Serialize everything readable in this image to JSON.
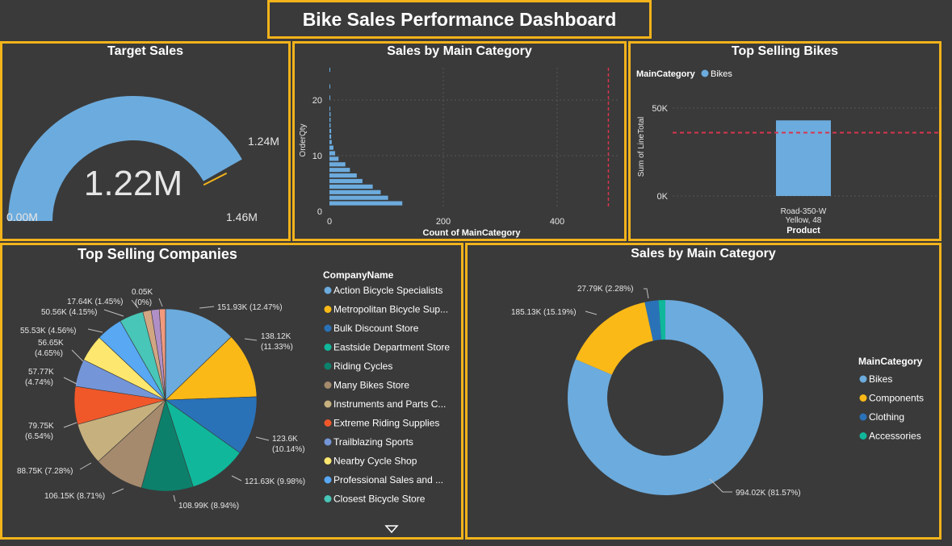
{
  "title": "Bike Sales Performance Dashboard",
  "colors": {
    "accent": "#f2b31b",
    "background": "#3a3a3a",
    "primary_blue": "#6cabdd"
  },
  "gauge": {
    "title": "Target Sales",
    "value_label": "1.22M",
    "min_label": "0.00M",
    "max_label": "1.46M",
    "target_label": "1.24M",
    "value": 1.22,
    "min": 0,
    "max": 1.46,
    "target": 1.24
  },
  "histogram": {
    "title": "Sales by Main Category",
    "ylabel": "OrderQty",
    "xlabel": "Count of MainCategory",
    "xticks": [
      "0",
      "200",
      "400"
    ],
    "yticks": [
      "0",
      "10",
      "20"
    ]
  },
  "top_bikes": {
    "title": "Top Selling Bikes",
    "legend_title": "MainCategory",
    "legend_item": "Bikes",
    "ylabel": "Sum of LineTotal",
    "xlabel": "Product",
    "yticks": [
      "0K",
      "50K"
    ],
    "product_line1": "Road-350-W",
    "product_line2": "Yellow, 48"
  },
  "companies": {
    "title": "Top Selling Companies",
    "legend_title": "CompanyName",
    "legend": [
      "Action Bicycle Specialists",
      "Metropolitan Bicycle Sup...",
      "Bulk Discount Store",
      "Eastside Department Store",
      "Riding Cycles",
      "Many Bikes Store",
      "Instruments and Parts C...",
      "Extreme Riding Supplies",
      "Trailblazing Sports",
      "Nearby Cycle Shop",
      "Professional Sales and ...",
      "Closest Bicycle Store"
    ],
    "labels": {
      "l0": "151.93K (12.47%)",
      "l1a": "138.12K",
      "l1b": "(11.33%)",
      "l2a": "123.6K",
      "l2b": "(10.14%)",
      "l3": "121.63K (9.98%)",
      "l4": "108.99K (8.94%)",
      "l5": "106.15K (8.71%)",
      "l6": "88.75K (7.28%)",
      "l7a": "79.75K",
      "l7b": "(6.54%)",
      "l8a": "57.77K",
      "l8b": "(4.74%)",
      "l9a": "56.65K",
      "l9b": "(4.65%)",
      "l10": "55.53K (4.56%)",
      "l11": "50.56K (4.15%)",
      "l12": "17.64K (1.45%)",
      "l13a": "0.05K",
      "l13b": "(0%)"
    }
  },
  "main_category": {
    "title": "Sales by Main Category",
    "legend_title": "MainCategory",
    "legend": [
      "Bikes",
      "Components",
      "Clothing",
      "Accessories"
    ],
    "labels": {
      "bikes": "994.02K (81.57%)",
      "components": "185.13K (15.19%)",
      "clothing": "27.79K (2.28%)"
    }
  },
  "chart_data": [
    {
      "type": "gauge",
      "title": "Target Sales",
      "value": 1.22,
      "min": 0,
      "max": 1.46,
      "target": 1.24,
      "unit": "M"
    },
    {
      "type": "bar",
      "title": "Sales by Main Category",
      "orientation": "horizontal",
      "xlabel": "Count of MainCategory",
      "ylabel": "OrderQty",
      "xlim": [
        0,
        500
      ],
      "ylim": [
        0,
        25
      ],
      "categories": [
        1,
        2,
        3,
        4,
        5,
        6,
        7,
        8,
        9,
        10,
        11,
        12,
        13,
        14,
        15,
        16,
        17,
        18,
        20,
        22,
        25
      ],
      "values": [
        128,
        103,
        90,
        76,
        58,
        48,
        36,
        28,
        16,
        10,
        7,
        4,
        3,
        3,
        2,
        2,
        2,
        1,
        1,
        1,
        1
      ],
      "reference_line_x": 490
    },
    {
      "type": "bar",
      "title": "Top Selling Bikes",
      "xlabel": "Product",
      "ylabel": "Sum of LineTotal",
      "categories": [
        "Road-350-W Yellow, 48"
      ],
      "series": [
        {
          "name": "Bikes",
          "values": [
            43000
          ]
        }
      ],
      "ylim": [
        0,
        60000
      ],
      "reference_line_y": 36000
    },
    {
      "type": "pie",
      "title": "Top Selling Companies",
      "categories": [
        "Action Bicycle Specialists",
        "Metropolitan Bicycle Sup...",
        "Bulk Discount Store",
        "Eastside Department Store",
        "Riding Cycles",
        "Many Bikes Store",
        "Instruments and Parts C...",
        "Extreme Riding Supplies",
        "Trailblazing Sports",
        "Nearby Cycle Shop",
        "Professional Sales and ...",
        "Closest Bicycle Store",
        "",
        "",
        "",
        ""
      ],
      "values": [
        151.93,
        138.12,
        123.6,
        121.63,
        108.99,
        106.15,
        88.75,
        79.75,
        57.77,
        56.65,
        55.53,
        50.56,
        17.64,
        17.0,
        13.0,
        0.05
      ],
      "colors": [
        "#6cabdd",
        "#fbb917",
        "#2a72b8",
        "#10b79b",
        "#0d806b",
        "#a58a6d",
        "#c6b07e",
        "#f0582a",
        "#7496d8",
        "#fde76e",
        "#58a8f4",
        "#48c6b7",
        "#d2a683",
        "#b08fc6",
        "#f19a7e",
        "#e0c46a"
      ]
    },
    {
      "type": "pie",
      "title": "Sales by Main Category",
      "categories": [
        "Bikes",
        "Components",
        "Clothing",
        "Accessories"
      ],
      "values": [
        994.02,
        185.13,
        27.79,
        13.6
      ],
      "colors": [
        "#6cabdd",
        "#fbb917",
        "#2a72b8",
        "#10b79b"
      ]
    }
  ]
}
